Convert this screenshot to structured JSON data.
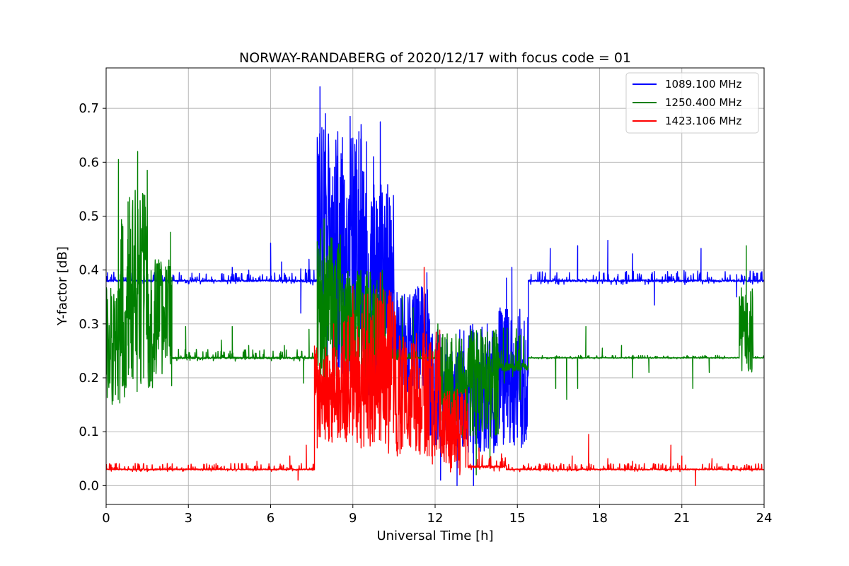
{
  "chart_data": {
    "type": "line",
    "title": "NORWAY-RANDABERG of 2020/12/17 with focus code = 01",
    "xlabel": "Universal Time [h]",
    "ylabel": "Y-factor [dB]",
    "xlim": [
      0,
      24
    ],
    "ylim": [
      -0.035,
      0.775
    ],
    "x_ticks": [
      0,
      3,
      6,
      9,
      12,
      15,
      18,
      21,
      24
    ],
    "x_tick_labels": [
      "0",
      "3",
      "6",
      "9",
      "12",
      "15",
      "18",
      "21",
      "24"
    ],
    "y_ticks": [
      0.0,
      0.1,
      0.2,
      0.3,
      0.4,
      0.5,
      0.6,
      0.7
    ],
    "y_tick_labels": [
      "0.0",
      "0.1",
      "0.2",
      "0.3",
      "0.4",
      "0.5",
      "0.6",
      "0.7"
    ],
    "grid": true,
    "legend_position": "top-right",
    "series": [
      {
        "name": "1089.100 MHz",
        "color": "#0000ff",
        "segments": [
          {
            "x0": 0.0,
            "x1": 2.2,
            "base": 0.38,
            "noise": 0.012,
            "spikes": [
              [
                0.05,
                0.395
              ],
              [
                1.2,
                0.39
              ]
            ]
          },
          {
            "x0": 2.2,
            "x1": 6.8,
            "base": 0.38,
            "noise": 0.01,
            "spikes": [
              [
                4.6,
                0.405
              ],
              [
                6.0,
                0.45
              ],
              [
                6.4,
                0.415
              ],
              [
                5.2,
                0.4
              ]
            ]
          },
          {
            "x0": 6.8,
            "x1": 7.7,
            "base": 0.38,
            "noise": 0.015,
            "spikes": [
              [
                7.1,
                0.32
              ],
              [
                7.4,
                0.42
              ]
            ]
          },
          {
            "x0": 7.7,
            "x1": 8.3,
            "base": 0.45,
            "noise": 0.22,
            "spikes": [
              [
                7.8,
                0.74
              ],
              [
                8.0,
                0.69
              ]
            ]
          },
          {
            "x0": 8.3,
            "x1": 9.5,
            "base": 0.42,
            "noise": 0.24,
            "spikes": [
              [
                8.9,
                0.685
              ],
              [
                9.3,
                0.67
              ]
            ]
          },
          {
            "x0": 9.5,
            "x1": 10.5,
            "base": 0.36,
            "noise": 0.2,
            "spikes": [
              [
                10.0,
                0.675
              ],
              [
                9.75,
                0.61
              ]
            ]
          },
          {
            "x0": 10.5,
            "x1": 11.8,
            "base": 0.27,
            "noise": 0.1,
            "spikes": [
              [
                11.7,
                0.395
              ]
            ]
          },
          {
            "x0": 11.8,
            "x1": 13.0,
            "base": 0.18,
            "noise": 0.11,
            "spikes": [
              [
                12.2,
                0.01
              ],
              [
                12.8,
                0.0
              ]
            ]
          },
          {
            "x0": 13.0,
            "x1": 14.2,
            "base": 0.18,
            "noise": 0.12,
            "spikes": [
              [
                13.4,
                0.0
              ],
              [
                13.9,
                0.3
              ]
            ]
          },
          {
            "x0": 14.2,
            "x1": 15.4,
            "base": 0.2,
            "noise": 0.13,
            "spikes": [
              [
                14.6,
                0.385
              ],
              [
                14.8,
                0.405
              ]
            ]
          },
          {
            "x0": 15.4,
            "x1": 24.0,
            "base": 0.38,
            "noise": 0.012,
            "spikes": [
              [
                16.2,
                0.44
              ],
              [
                17.2,
                0.445
              ],
              [
                18.3,
                0.455
              ],
              [
                19.2,
                0.43
              ],
              [
                20.0,
                0.335
              ],
              [
                21.7,
                0.44
              ],
              [
                23.0,
                0.35
              ]
            ]
          }
        ]
      },
      {
        "name": "1250.400 MHz",
        "color": "#008000",
        "segments": [
          {
            "x0": 0.0,
            "x1": 0.5,
            "base": 0.25,
            "noise": 0.12,
            "spikes": [
              [
                0.45,
                0.605
              ]
            ]
          },
          {
            "x0": 0.5,
            "x1": 1.5,
            "base": 0.35,
            "noise": 0.2,
            "spikes": [
              [
                1.15,
                0.62
              ],
              [
                0.8,
                0.26
              ]
            ]
          },
          {
            "x0": 1.5,
            "x1": 2.4,
            "base": 0.3,
            "noise": 0.12,
            "spikes": [
              [
                1.5,
                0.585
              ],
              [
                2.35,
                0.47
              ]
            ]
          },
          {
            "x0": 2.4,
            "x1": 7.7,
            "base": 0.237,
            "noise": 0.01,
            "spikes": [
              [
                2.9,
                0.295
              ],
              [
                4.2,
                0.27
              ],
              [
                4.6,
                0.295
              ],
              [
                5.2,
                0.26
              ],
              [
                5.6,
                0.25
              ],
              [
                6.5,
                0.26
              ],
              [
                7.2,
                0.19
              ],
              [
                7.4,
                0.29
              ]
            ]
          },
          {
            "x0": 7.7,
            "x1": 8.6,
            "base": 0.34,
            "noise": 0.14,
            "spikes": [
              [
                7.95,
                0.495
              ],
              [
                8.2,
                0.46
              ]
            ]
          },
          {
            "x0": 8.6,
            "x1": 10.2,
            "base": 0.3,
            "noise": 0.1,
            "spikes": [
              [
                9.2,
                0.39
              ],
              [
                9.85,
                0.36
              ]
            ]
          },
          {
            "x0": 10.2,
            "x1": 12.2,
            "base": 0.237,
            "noise": 0.01,
            "spikes": [
              [
                10.8,
                0.35
              ],
              [
                11.2,
                0.33
              ],
              [
                11.6,
                0.28
              ],
              [
                12.1,
                0.3
              ]
            ]
          },
          {
            "x0": 12.2,
            "x1": 14.3,
            "base": 0.19,
            "noise": 0.1,
            "spikes": [
              [
                13.5,
                0.02
              ],
              [
                14.0,
                0.04
              ]
            ]
          },
          {
            "x0": 14.3,
            "x1": 15.4,
            "base": 0.22,
            "noise": 0.05,
            "spikes": [
              [
                15.1,
                0.16
              ]
            ]
          },
          {
            "x0": 15.4,
            "x1": 23.1,
            "base": 0.237,
            "noise": 0.003,
            "spikes": [
              [
                16.4,
                0.18
              ],
              [
                16.8,
                0.16
              ],
              [
                17.5,
                0.295
              ],
              [
                17.2,
                0.18
              ],
              [
                18.1,
                0.255
              ],
              [
                18.8,
                0.26
              ],
              [
                19.2,
                0.2
              ],
              [
                19.8,
                0.21
              ],
              [
                20.1,
                0.24
              ],
              [
                21.4,
                0.18
              ],
              [
                22.0,
                0.21
              ]
            ]
          },
          {
            "x0": 23.1,
            "x1": 23.6,
            "base": 0.29,
            "noise": 0.08,
            "spikes": [
              [
                23.35,
                0.445
              ]
            ]
          },
          {
            "x0": 23.6,
            "x1": 24.0,
            "base": 0.237,
            "noise": 0.003,
            "spikes": []
          }
        ]
      },
      {
        "name": "1423.106 MHz",
        "color": "#ff0000",
        "segments": [
          {
            "x0": 0.0,
            "x1": 7.6,
            "base": 0.03,
            "noise": 0.007,
            "spikes": [
              [
                5.5,
                0.045
              ],
              [
                6.7,
                0.055
              ],
              [
                7.0,
                0.01
              ],
              [
                7.3,
                0.075
              ]
            ]
          },
          {
            "x0": 7.6,
            "x1": 8.6,
            "base": 0.17,
            "noise": 0.09,
            "spikes": [
              [
                7.7,
                0.07
              ],
              [
                8.3,
                0.3
              ]
            ]
          },
          {
            "x0": 8.6,
            "x1": 9.4,
            "base": 0.2,
            "noise": 0.12,
            "spikes": [
              [
                9.0,
                0.37
              ],
              [
                9.3,
                0.07
              ]
            ]
          },
          {
            "x0": 9.4,
            "x1": 10.6,
            "base": 0.22,
            "noise": 0.15,
            "spikes": [
              [
                10.0,
                0.395
              ],
              [
                10.3,
                0.06
              ]
            ]
          },
          {
            "x0": 10.6,
            "x1": 12.2,
            "base": 0.17,
            "noise": 0.12,
            "spikes": [
              [
                11.6,
                0.405
              ],
              [
                11.9,
                0.04
              ]
            ]
          },
          {
            "x0": 12.2,
            "x1": 13.2,
            "base": 0.1,
            "noise": 0.08,
            "spikes": [
              [
                12.9,
                0.02
              ]
            ]
          },
          {
            "x0": 13.2,
            "x1": 14.6,
            "base": 0.035,
            "noise": 0.015,
            "spikes": [
              [
                13.6,
                0.07
              ]
            ]
          },
          {
            "x0": 14.6,
            "x1": 24.0,
            "base": 0.03,
            "noise": 0.007,
            "spikes": [
              [
                17.0,
                0.055
              ],
              [
                17.6,
                0.095
              ],
              [
                18.3,
                0.05
              ],
              [
                19.2,
                0.045
              ],
              [
                20.6,
                0.075
              ],
              [
                21.0,
                0.055
              ],
              [
                21.5,
                0.0
              ],
              [
                22.1,
                0.05
              ]
            ]
          }
        ]
      }
    ]
  }
}
